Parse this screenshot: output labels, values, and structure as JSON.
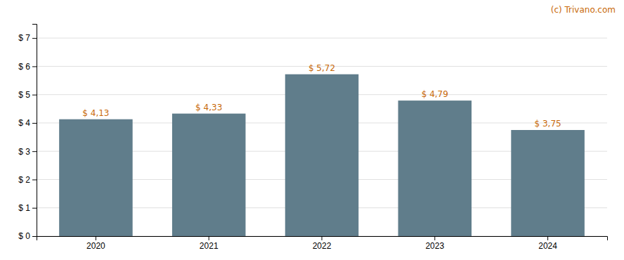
{
  "chart_data": {
    "type": "bar",
    "categories": [
      "2020",
      "2021",
      "2022",
      "2023",
      "2024"
    ],
    "values": [
      4.13,
      4.33,
      5.72,
      4.79,
      3.75
    ],
    "value_labels": [
      "$ 4,13",
      "$ 4,33",
      "$ 5,72",
      "$ 4,79",
      "$ 3,75"
    ],
    "data_labels": true,
    "color": "#607d8b",
    "ylim": [
      0,
      7.5
    ],
    "yticks": [
      {
        "value": 0,
        "label": "$ 0"
      },
      {
        "value": 1,
        "label": "$ 1"
      },
      {
        "value": 2,
        "label": "$ 2"
      },
      {
        "value": 3,
        "label": "$ 3"
      },
      {
        "value": 4,
        "label": "$ 4"
      },
      {
        "value": 5,
        "label": "$ 5"
      },
      {
        "value": 6,
        "label": "$ 6"
      },
      {
        "value": 7,
        "label": "$ 7"
      }
    ],
    "grid": true,
    "annotations": [
      "(c) Trivano.com"
    ]
  }
}
